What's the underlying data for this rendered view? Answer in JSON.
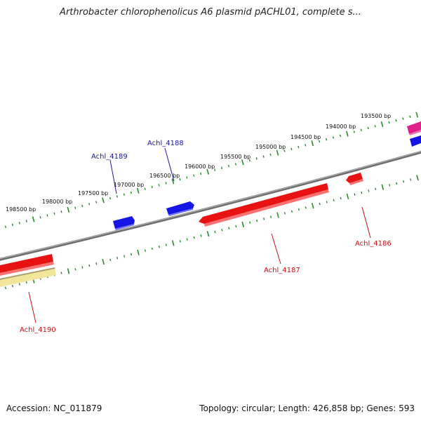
{
  "title": "Arthrobacter chlorophenolicus A6 plasmid pACHL01, complete s...",
  "footer": {
    "accession": "Accession: NC_011879",
    "summary": "Topology: circular; Length: 426,858 bp; Genes: 593"
  },
  "colors": {
    "forward_gene": "#1010e0",
    "reverse_gene": "#e81010",
    "pseudo_gene": "#f0e090",
    "other_gene": "#e0208a",
    "backbone": "#808080",
    "tick": "#2a8a2a",
    "forward_label": "#1a1aa0",
    "reverse_label": "#cc1111"
  },
  "scale_labels": [
    "198500 bp",
    "198000 bp",
    "197500 bp",
    "197000 bp",
    "196500 bp",
    "196000 bp",
    "195500 bp",
    "195000 bp",
    "194500 bp",
    "194000 bp",
    "193500 bp"
  ],
  "gene_labels": {
    "forward": [
      "Achl_4189",
      "Achl_4188"
    ],
    "reverse": [
      "Achl_4190",
      "Achl_4187",
      "Achl_4186"
    ]
  }
}
